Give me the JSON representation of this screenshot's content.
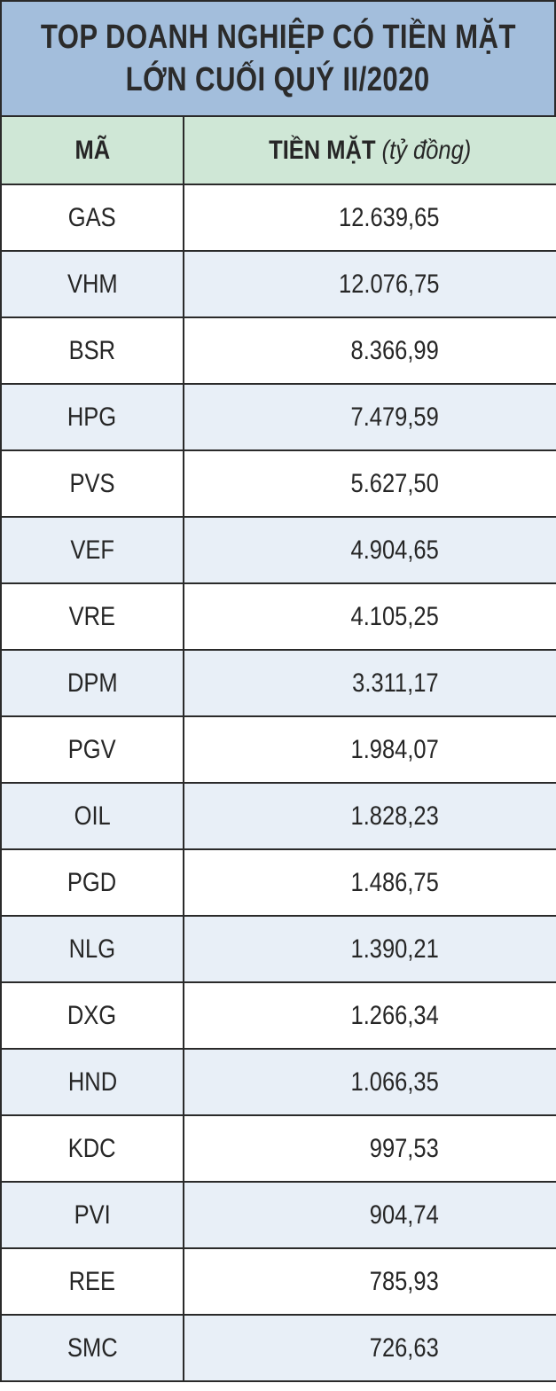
{
  "title": {
    "line1": "TOP DOANH NGHIỆP CÓ TIỀN MẶT",
    "line2": "LỚN CUỐI QUÝ II/2020"
  },
  "header": {
    "code": "MÃ",
    "cash": "TIỀN MẶT",
    "unit": "(tỷ đồng)"
  },
  "colors": {
    "title_bg": "#a3bedc",
    "header_bg": "#cfe7d6",
    "stripe_bg": "#e8eff7",
    "border": "#2a2a2a"
  },
  "chart_data": {
    "type": "table",
    "title": "TOP DOANH NGHIỆP CÓ TIỀN MẶT LỚN CUỐI QUÝ II/2020",
    "columns": [
      "MÃ",
      "TIỀN MẶT (tỷ đồng)"
    ],
    "rows": [
      {
        "code": "GAS",
        "value": "12.639,65"
      },
      {
        "code": "VHM",
        "value": "12.076,75"
      },
      {
        "code": "BSR",
        "value": "8.366,99"
      },
      {
        "code": "HPG",
        "value": "7.479,59"
      },
      {
        "code": "PVS",
        "value": "5.627,50"
      },
      {
        "code": "VEF",
        "value": "4.904,65"
      },
      {
        "code": "VRE",
        "value": "4.105,25"
      },
      {
        "code": "DPM",
        "value": "3.311,17"
      },
      {
        "code": "PGV",
        "value": "1.984,07"
      },
      {
        "code": "OIL",
        "value": "1.828,23"
      },
      {
        "code": "PGD",
        "value": "1.486,75"
      },
      {
        "code": "NLG",
        "value": "1.390,21"
      },
      {
        "code": "DXG",
        "value": "1.266,34"
      },
      {
        "code": "HND",
        "value": "1.066,35"
      },
      {
        "code": "KDC",
        "value": "997,53"
      },
      {
        "code": "PVI",
        "value": "904,74"
      },
      {
        "code": "REE",
        "value": "785,93"
      },
      {
        "code": "SMC",
        "value": "726,63"
      }
    ]
  }
}
